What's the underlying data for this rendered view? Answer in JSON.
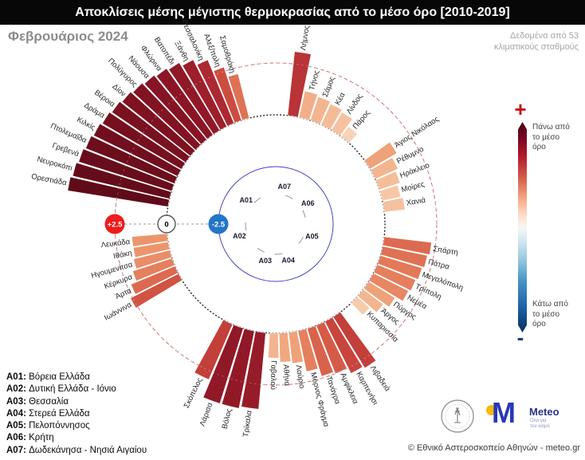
{
  "header": {
    "title": "Αποκλίσεις μέσης μέγιστης θερμοκρασίας από το μέσο όρο [2010-2019]"
  },
  "subheader": {
    "month": "Φεβρουάριος 2024",
    "source_lines": [
      "Δεδομένα από 53",
      "κλιματικούς σταθμούς"
    ]
  },
  "legend": {
    "plus": "+",
    "minus": "-",
    "above_lines": [
      "Πάνω από",
      "το μέσο",
      "όρο"
    ],
    "below_lines": [
      "Κάτω από",
      "το μέσο",
      "όρο"
    ]
  },
  "regions_key": [
    {
      "code": "A01",
      "name": "Βόρεια Ελλάδα"
    },
    {
      "code": "A02",
      "name": "Δυτική Ελλάδα - Ιόνιο"
    },
    {
      "code": "A03",
      "name": "Θεσσαλία"
    },
    {
      "code": "A04",
      "name": "Στερεά Ελλάδα"
    },
    {
      "code": "A05",
      "name": "Πελοπόννησος"
    },
    {
      "code": "A06",
      "name": "Κρήτη"
    },
    {
      "code": "A07",
      "name": "Δωδεκάνησα - Νησιά Αιγαίου"
    }
  ],
  "footer": {
    "meteo_m": "M",
    "meteo_name": "Meteo",
    "meteo_tagline_lines": [
      "Όλα για",
      "τον καιρό"
    ],
    "copyright": "© Εθνικό Αστεροσκοπείο Αθηνών - meteo.gr"
  },
  "chart_data": {
    "type": "bar",
    "layout": "polar",
    "title": "Αποκλίσεις μέσης μέγιστης θερμοκρασίας από το μέσο όρο [2010-2019]",
    "period": "Φεβρουάριος 2024",
    "stations_count": 53,
    "axis_markers": [
      {
        "value": 2.5,
        "label": "+2.5",
        "fill": "#ee1c1c",
        "text": "#ffffff"
      },
      {
        "value": 0,
        "label": "0",
        "fill": "#ffffff",
        "text": "#000000"
      },
      {
        "value": -2.5,
        "label": "-2.5",
        "fill": "#2176c7",
        "text": "#ffffff"
      }
    ],
    "rings": {
      "zero_ring_value": 0,
      "outer_ring_value": 2.5,
      "inner_ring_value": -2.5
    },
    "legend_gradient": [
      "#67001f",
      "#b2182b",
      "#d6604d",
      "#f4a582",
      "#f7f7f7",
      "#d1e5f0",
      "#92c5de",
      "#4393c3",
      "#2166ac",
      "#053061"
    ],
    "groups": [
      {
        "code": "A01",
        "region": "Βόρεια Ελλάδα",
        "stations": [
          {
            "name": "Ορεστιάδα",
            "value": 4.9
          },
          {
            "name": "Νευροκόπι",
            "value": 4.8
          },
          {
            "name": "Γρεβενά",
            "value": 4.7
          },
          {
            "name": "Πτολεμαΐδα",
            "value": 4.6
          },
          {
            "name": "Κιλκίς",
            "value": 4.5
          },
          {
            "name": "Δράμα",
            "value": 4.4
          },
          {
            "name": "Βέροια",
            "value": 4.3
          },
          {
            "name": "Δίον",
            "value": 4.2
          },
          {
            "name": "Πολύγυρος",
            "value": 4.1
          },
          {
            "name": "Νάουσα",
            "value": 4.0
          },
          {
            "name": "Φλώρινα",
            "value": 3.9
          },
          {
            "name": "Βατοπέδι",
            "value": 3.8
          },
          {
            "name": "Ξάνθη",
            "value": 3.6
          },
          {
            "name": "Θεσσαλονίκη",
            "value": 3.3
          },
          {
            "name": "Αλεξ/πολη",
            "value": 2.7
          },
          {
            "name": "Σαμοθράκη",
            "value": 2.2
          }
        ]
      },
      {
        "code": "A07",
        "region": "Δωδεκάνησα - Νησιά Αιγαίου",
        "stations": [
          {
            "name": "Λήμνος",
            "value": 3.1
          },
          {
            "name": "Τήνος",
            "value": 1.3
          },
          {
            "name": "Σάμος",
            "value": 1.2
          },
          {
            "name": "Κέα",
            "value": 1.1
          },
          {
            "name": "Λίνδος",
            "value": 1.0
          },
          {
            "name": "Πάρος",
            "value": 0.6
          }
        ]
      },
      {
        "code": "A06",
        "region": "Κρήτη",
        "stations": [
          {
            "name": "Άγιος Νικόλαος",
            "value": 1.5
          },
          {
            "name": "Ρέθυμνο",
            "value": 1.2
          },
          {
            "name": "Ηράκλειο",
            "value": 1.05
          },
          {
            "name": "Μοίρες",
            "value": 0.9
          },
          {
            "name": "Χανιά",
            "value": 1.0
          }
        ]
      },
      {
        "code": "A05",
        "region": "Πελοπόννησος",
        "stations": [
          {
            "name": "Σπάρτη",
            "value": 2.3
          },
          {
            "name": "Πάτρα",
            "value": 2.2
          },
          {
            "name": "Μεγαλόπολη",
            "value": 2.1
          },
          {
            "name": "Τρίπολη",
            "value": 2.0
          },
          {
            "name": "Νεμέα",
            "value": 1.9
          },
          {
            "name": "Πύργος",
            "value": 1.5
          },
          {
            "name": "Άργος",
            "value": 1.2
          },
          {
            "name": "Κυπαρισσία",
            "value": 0.8
          }
        ]
      },
      {
        "code": "A04",
        "region": "Στερεά Ελλάδα",
        "stations": [
          {
            "name": "Λιβαδειά",
            "value": 2.9
          },
          {
            "name": "Καρπενήσι",
            "value": 2.8
          },
          {
            "name": "Αμφίκλεια",
            "value": 2.5
          },
          {
            "name": "Τανάγρα",
            "value": 2.4
          },
          {
            "name": "Μόρνος Φράγμα",
            "value": 2.0
          },
          {
            "name": "Λαύριο",
            "value": 1.5
          },
          {
            "name": "Αθήνα",
            "value": 1.4
          },
          {
            "name": "Γαβαλού",
            "value": 1.2
          }
        ]
      },
      {
        "code": "A03",
        "region": "Θεσσαλία",
        "stations": [
          {
            "name": "Τρίκαλα",
            "value": 3.7
          },
          {
            "name": "Βόλος",
            "value": 3.8
          },
          {
            "name": "Λάρισα",
            "value": 3.8
          },
          {
            "name": "Σκόπελος",
            "value": 2.9
          }
        ]
      },
      {
        "code": "A02",
        "region": "Δυτική Ελλάδα - Ιόνιο",
        "stations": [
          {
            "name": "Ιωάννινα",
            "value": 2.6
          },
          {
            "name": "Άρτα",
            "value": 2.3
          },
          {
            "name": "Κέρκυρα",
            "value": 2.0
          },
          {
            "name": "Ηγουμενίτσα",
            "value": 1.8
          },
          {
            "name": "Ιθάκη",
            "value": 1.7
          },
          {
            "name": "Λευκάδα",
            "value": 1.7
          }
        ]
      }
    ]
  }
}
